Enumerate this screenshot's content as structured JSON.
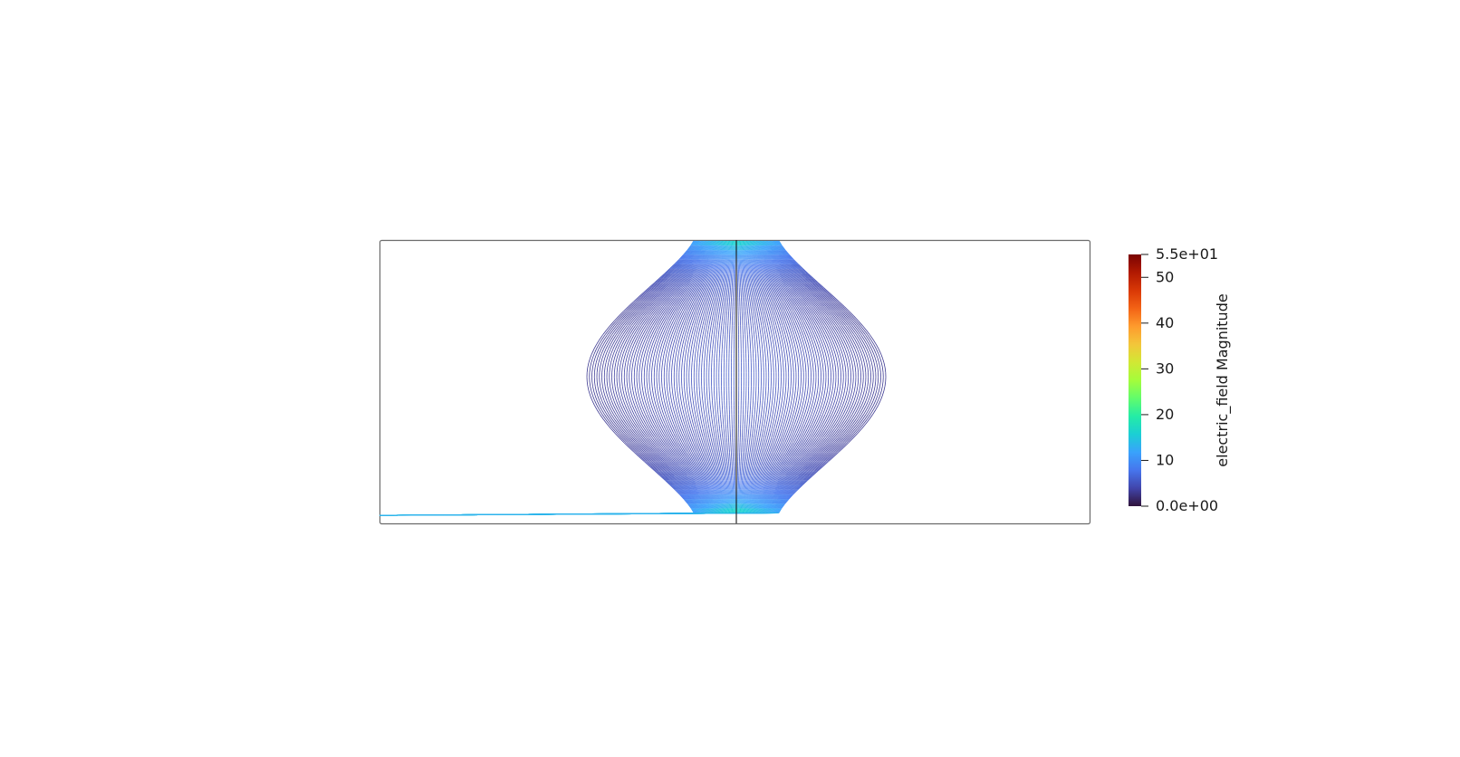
{
  "scene": {
    "background": "#ffffff",
    "outline_color": "#6b6b6b",
    "streamline_count": 120,
    "axis_line_color": "#2b2b2b"
  },
  "colorbar": {
    "title": "electric_field Magnitude",
    "range": [
      0,
      55
    ],
    "max_label": "5.5e+01",
    "min_label": "0.0e+00",
    "ticks": [
      {
        "value": 50,
        "label": "50"
      },
      {
        "value": 40,
        "label": "40"
      },
      {
        "value": 30,
        "label": "30"
      },
      {
        "value": 20,
        "label": "20"
      },
      {
        "value": 10,
        "label": "10"
      }
    ],
    "colormap": [
      "#30123b",
      "#4145ab",
      "#4675ed",
      "#39a2fc",
      "#1bcfd4",
      "#24eca6",
      "#61fc6c",
      "#a4fc3b",
      "#d1e834",
      "#f3c63a",
      "#fe9b2d",
      "#f36315",
      "#d93806",
      "#b11901",
      "#7a0402"
    ]
  }
}
